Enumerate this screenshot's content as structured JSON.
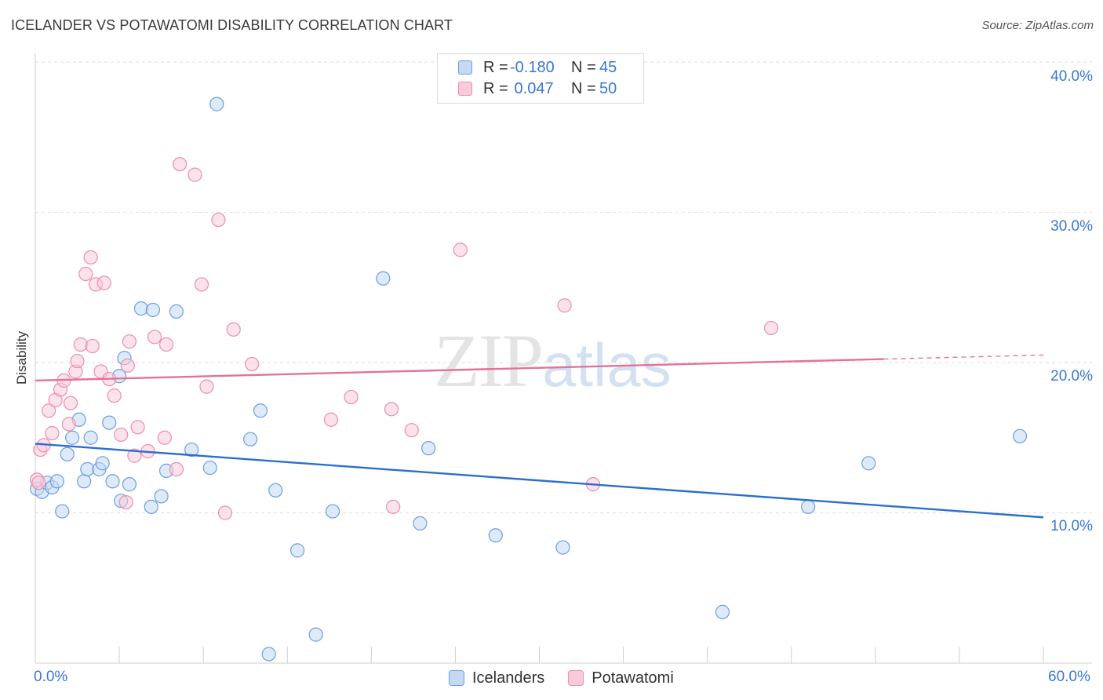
{
  "title": "ICELANDER VS POTAWATOMI DISABILITY CORRELATION CHART",
  "source": "Source: ZipAtlas.com",
  "watermark": {
    "zip": "ZIP",
    "atlas": "atlas"
  },
  "legend": {
    "r_label": "R =",
    "n_label": "N =",
    "rows": [
      {
        "r": "-0.180",
        "n": "45"
      },
      {
        "r": " 0.047",
        "n": "50"
      }
    ]
  },
  "bottom_legend": [
    "Icelanders",
    "Potawatomi"
  ],
  "colors": {
    "blue_fill": "#c5d9f4",
    "blue_stroke": "#6a9fe0",
    "blue_line": "#2a6fcf",
    "pink_fill": "#f9cbd9",
    "pink_stroke": "#ea8fab",
    "pink_line": "#e3729a",
    "tick_text": "#3a78d4",
    "grid": "#dedede"
  },
  "chart_data": {
    "type": "scatter",
    "title": "ICELANDER VS POTAWATOMI DISABILITY CORRELATION CHART",
    "xlabel": "",
    "ylabel": "Disability",
    "xlim": [
      0,
      60
    ],
    "ylim": [
      0,
      40
    ],
    "x_tick_labels": [
      "0.0%",
      "60.0%"
    ],
    "y_ticks": [
      10,
      20,
      30,
      40
    ],
    "y_tick_labels": [
      "10.0%",
      "20.0%",
      "30.0%",
      "40.0%"
    ],
    "series": [
      {
        "name": "Icelanders",
        "r": -0.18,
        "n": 45,
        "trend": {
          "x0": 0,
          "y0": 14.6,
          "x1": 60,
          "y1": 9.7,
          "solid_until": 60
        },
        "points": [
          [
            0.1,
            11.6
          ],
          [
            0.4,
            11.4
          ],
          [
            0.7,
            12.0
          ],
          [
            1.0,
            11.7
          ],
          [
            1.3,
            12.1
          ],
          [
            1.6,
            10.1
          ],
          [
            1.9,
            13.9
          ],
          [
            2.2,
            15.0
          ],
          [
            2.6,
            16.2
          ],
          [
            2.9,
            12.1
          ],
          [
            3.1,
            12.9
          ],
          [
            3.3,
            15.0
          ],
          [
            3.8,
            12.9
          ],
          [
            4.0,
            13.3
          ],
          [
            4.4,
            16.0
          ],
          [
            4.6,
            12.1
          ],
          [
            5.0,
            19.1
          ],
          [
            5.1,
            10.8
          ],
          [
            5.3,
            20.3
          ],
          [
            5.6,
            11.9
          ],
          [
            6.3,
            23.6
          ],
          [
            6.9,
            10.4
          ],
          [
            7.0,
            23.5
          ],
          [
            7.5,
            11.1
          ],
          [
            7.8,
            12.8
          ],
          [
            8.4,
            23.4
          ],
          [
            9.3,
            14.2
          ],
          [
            10.4,
            13.0
          ],
          [
            10.8,
            37.2
          ],
          [
            12.8,
            14.9
          ],
          [
            13.4,
            16.8
          ],
          [
            13.9,
            0.6
          ],
          [
            14.3,
            11.5
          ],
          [
            15.6,
            7.5
          ],
          [
            16.7,
            1.9
          ],
          [
            17.7,
            10.1
          ],
          [
            20.7,
            25.6
          ],
          [
            22.9,
            9.3
          ],
          [
            23.4,
            14.3
          ],
          [
            27.4,
            8.5
          ],
          [
            31.4,
            7.7
          ],
          [
            40.9,
            3.4
          ],
          [
            46.0,
            10.4
          ],
          [
            49.6,
            13.3
          ],
          [
            58.6,
            15.1
          ]
        ]
      },
      {
        "name": "Potawatomi",
        "r": 0.047,
        "n": 50,
        "trend": {
          "x0": 0,
          "y0": 18.8,
          "x1": 60,
          "y1": 20.5,
          "solid_until": 50.5
        },
        "points": [
          [
            0.1,
            12.2
          ],
          [
            0.3,
            14.2
          ],
          [
            0.5,
            14.5
          ],
          [
            0.8,
            16.8
          ],
          [
            1.0,
            15.3
          ],
          [
            1.2,
            17.5
          ],
          [
            1.5,
            18.2
          ],
          [
            1.7,
            18.8
          ],
          [
            2.0,
            15.9
          ],
          [
            2.1,
            17.3
          ],
          [
            2.4,
            19.4
          ],
          [
            2.5,
            20.1
          ],
          [
            2.7,
            21.2
          ],
          [
            3.0,
            25.9
          ],
          [
            3.3,
            27.0
          ],
          [
            3.4,
            21.1
          ],
          [
            3.6,
            25.2
          ],
          [
            3.9,
            19.4
          ],
          [
            4.1,
            25.3
          ],
          [
            4.4,
            18.9
          ],
          [
            4.7,
            17.8
          ],
          [
            5.1,
            15.2
          ],
          [
            5.4,
            10.7
          ],
          [
            5.5,
            19.8
          ],
          [
            5.6,
            21.4
          ],
          [
            5.9,
            13.8
          ],
          [
            6.1,
            15.7
          ],
          [
            6.7,
            14.1
          ],
          [
            7.1,
            21.7
          ],
          [
            7.7,
            15.0
          ],
          [
            7.8,
            21.2
          ],
          [
            8.4,
            12.9
          ],
          [
            8.6,
            33.2
          ],
          [
            9.5,
            32.5
          ],
          [
            9.9,
            25.2
          ],
          [
            10.2,
            18.4
          ],
          [
            10.9,
            29.5
          ],
          [
            11.3,
            10.0
          ],
          [
            11.8,
            22.2
          ],
          [
            12.9,
            19.9
          ],
          [
            17.6,
            16.2
          ],
          [
            18.8,
            17.7
          ],
          [
            21.2,
            16.9
          ],
          [
            21.3,
            10.4
          ],
          [
            22.4,
            15.5
          ],
          [
            25.3,
            27.5
          ],
          [
            31.5,
            23.8
          ],
          [
            33.2,
            11.9
          ],
          [
            43.8,
            22.3
          ],
          [
            0.2,
            12.0
          ]
        ]
      }
    ]
  }
}
